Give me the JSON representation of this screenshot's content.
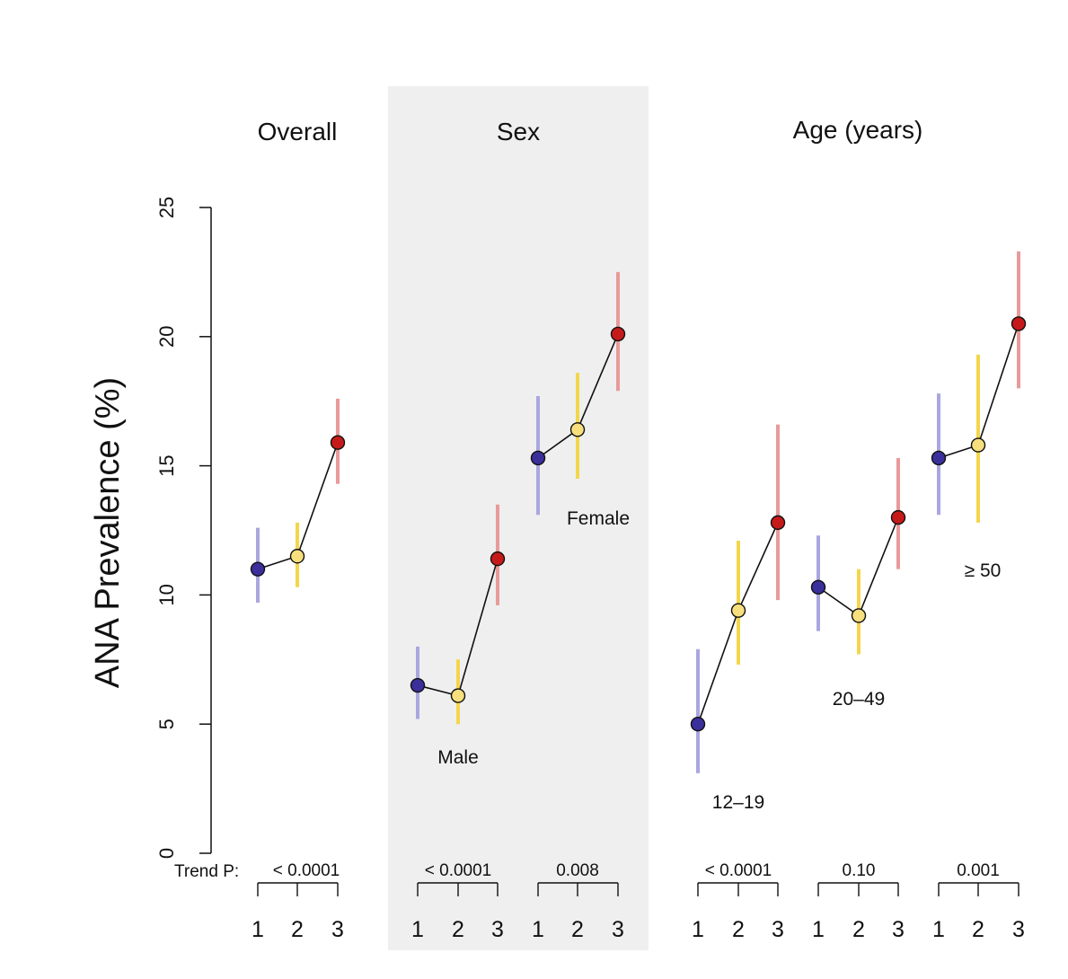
{
  "chart_data": {
    "type": "line",
    "ylabel": "ANA Prevalence (%)",
    "ylim": [
      0,
      25
    ],
    "yticks": [
      "0",
      "5",
      "10",
      "15",
      "20",
      "25"
    ],
    "x_categories": [
      "1",
      "2",
      "3"
    ],
    "trend_p_label": "Trend P:",
    "colors": {
      "1": "#3b2f9c",
      "2": "#f7df7e",
      "3": "#c61a1a"
    },
    "ci_colors": {
      "1": "#a9a7e0",
      "2": "#f3d64b",
      "3": "#e99a9a"
    },
    "shaded_panel_color": "#efefef",
    "panels": [
      {
        "title": "Overall",
        "shaded": false,
        "groups": [
          {
            "label": "",
            "trend_p": "< 0.0001",
            "values": [
              11.0,
              11.5,
              15.9
            ],
            "ci_low": [
              9.7,
              10.3,
              14.3
            ],
            "ci_high": [
              12.6,
              12.8,
              17.6
            ]
          }
        ]
      },
      {
        "title": "Sex",
        "shaded": true,
        "groups": [
          {
            "label": "Male",
            "trend_p": "< 0.0001",
            "values": [
              6.5,
              6.1,
              11.4
            ],
            "ci_low": [
              5.2,
              5.0,
              9.6
            ],
            "ci_high": [
              8.0,
              7.5,
              13.5
            ]
          },
          {
            "label": "Female",
            "trend_p": "0.008",
            "values": [
              15.3,
              16.4,
              20.1
            ],
            "ci_low": [
              13.1,
              14.5,
              17.9
            ],
            "ci_high": [
              17.7,
              18.6,
              22.5
            ]
          }
        ]
      },
      {
        "title": "Age (years)",
        "shaded": false,
        "groups": [
          {
            "label": "12–19",
            "trend_p": "< 0.0001",
            "values": [
              5.0,
              9.4,
              12.8
            ],
            "ci_low": [
              3.1,
              7.3,
              9.8
            ],
            "ci_high": [
              7.9,
              12.1,
              16.6
            ]
          },
          {
            "label": "20–49",
            "trend_p": "0.10",
            "values": [
              10.3,
              9.2,
              13.0
            ],
            "ci_low": [
              8.6,
              7.7,
              11.0
            ],
            "ci_high": [
              12.3,
              11.0,
              15.3
            ]
          },
          {
            "label": "≥ 50",
            "trend_p": "0.001",
            "values": [
              15.3,
              15.8,
              20.5
            ],
            "ci_low": [
              13.1,
              12.8,
              18.0
            ],
            "ci_high": [
              17.8,
              19.3,
              23.3
            ]
          }
        ]
      }
    ]
  }
}
